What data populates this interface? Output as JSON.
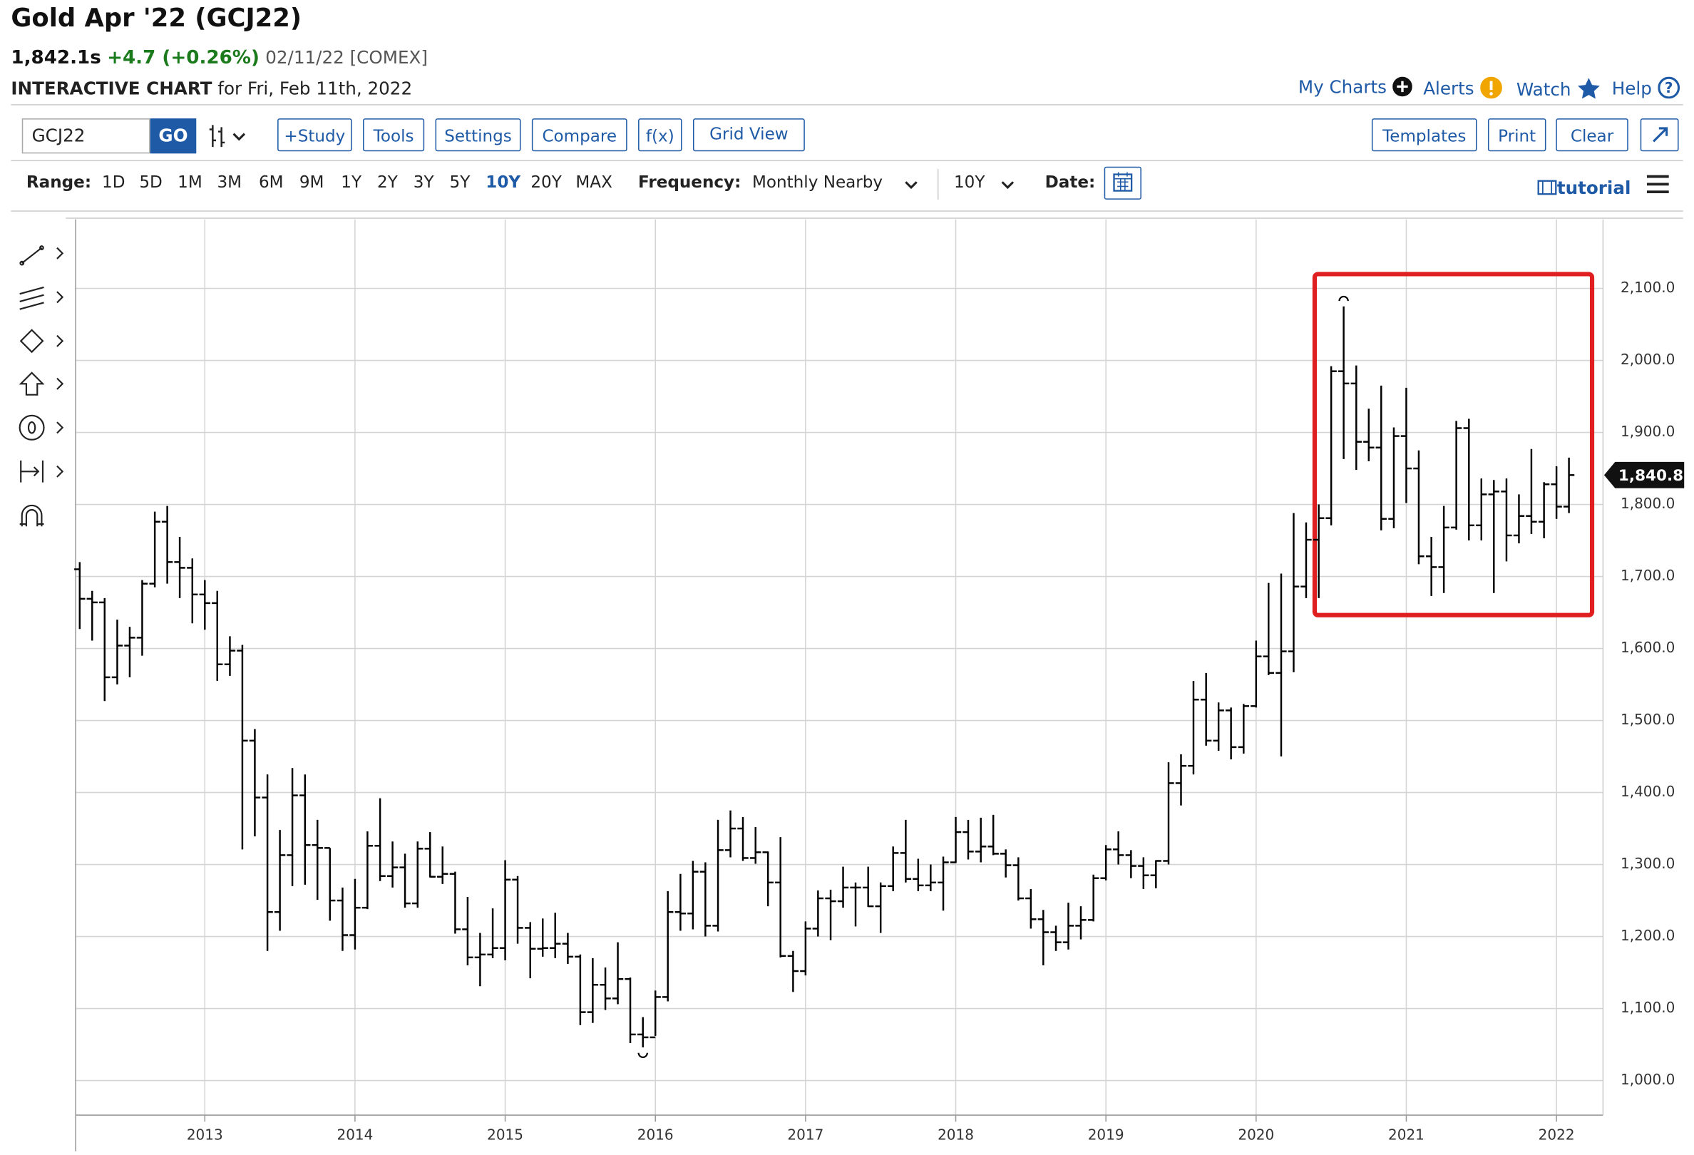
{
  "header": {
    "title": "Gold Apr '22 (GCJ22)",
    "price": "1,842.1s",
    "change": "+4.7 (+0.26%)",
    "date_exchange": "02/11/22 [COMEX]",
    "chart_label": "INTERACTIVE CHART",
    "chart_date": "for Fri, Feb 11th, 2022",
    "links": [
      "My Charts",
      "Alerts",
      "Watch",
      "Help"
    ]
  },
  "toolbar": {
    "symbol": "GCJ22",
    "go": "GO",
    "buttons": [
      "+Study",
      "Tools",
      "Settings",
      "Compare",
      "f(x)",
      "Grid View"
    ],
    "right_buttons": [
      "Templates",
      "Print",
      "Clear"
    ],
    "range_label": "Range:",
    "ranges": [
      "1D",
      "5D",
      "1M",
      "3M",
      "6M",
      "9M",
      "1Y",
      "2Y",
      "3Y",
      "5Y",
      "10Y",
      "20Y",
      "MAX"
    ],
    "frequency_label": "Frequency:",
    "frequency": "Monthly Nearby",
    "period": "10Y",
    "date_label": "Date:",
    "tutorial": "tutorial"
  },
  "chart_data": {
    "type": "ohlc",
    "color": "#000000",
    "grid": true,
    "x": [
      2012.167,
      2012.25,
      2012.333,
      2012.417,
      2012.5,
      2012.583,
      2012.667,
      2012.75,
      2012.833,
      2012.917,
      2013,
      2013.083,
      2013.167,
      2013.25,
      2013.333,
      2013.417,
      2013.5,
      2013.583,
      2013.667,
      2013.75,
      2013.833,
      2013.917,
      2014,
      2014.083,
      2014.167,
      2014.25,
      2014.333,
      2014.417,
      2014.5,
      2014.583,
      2014.667,
      2014.75,
      2014.833,
      2014.917,
      2015,
      2015.083,
      2015.167,
      2015.25,
      2015.333,
      2015.417,
      2015.5,
      2015.583,
      2015.667,
      2015.75,
      2015.833,
      2015.917,
      2016,
      2016.083,
      2016.167,
      2016.25,
      2016.333,
      2016.417,
      2016.5,
      2016.583,
      2016.667,
      2016.75,
      2016.833,
      2016.917,
      2017,
      2017.083,
      2017.167,
      2017.25,
      2017.333,
      2017.417,
      2017.5,
      2017.583,
      2017.667,
      2017.75,
      2017.833,
      2017.917,
      2018,
      2018.083,
      2018.167,
      2018.25,
      2018.333,
      2018.417,
      2018.5,
      2018.583,
      2018.667,
      2018.75,
      2018.833,
      2018.917,
      2019,
      2019.083,
      2019.167,
      2019.25,
      2019.333,
      2019.417,
      2019.5,
      2019.583,
      2019.667,
      2019.75,
      2019.833,
      2019.917,
      2020,
      2020.083,
      2020.167,
      2020.25,
      2020.333,
      2020.417,
      2020.5,
      2020.583,
      2020.667,
      2020.75,
      2020.833,
      2020.917,
      2021,
      2021.083,
      2021.167,
      2021.25,
      2021.333,
      2021.417,
      2021.5,
      2021.583,
      2021.667,
      2021.75,
      2021.833,
      2021.917,
      2022,
      2022.083
    ],
    "open": [
      1710,
      1669,
      1664,
      1560,
      1604,
      1615,
      1690,
      1776,
      1720,
      1712,
      1675,
      1663,
      1578,
      1597,
      1472,
      1393,
      1234,
      1313,
      1396,
      1327,
      1323,
      1250,
      1202,
      1240,
      1326,
      1284,
      1296,
      1246,
      1322,
      1283,
      1287,
      1210,
      1171,
      1175,
      1184,
      1279,
      1212,
      1183,
      1184,
      1190,
      1172,
      1095,
      1133,
      1114,
      1141,
      1064,
      1060,
      1116,
      1234,
      1232,
      1290,
      1215,
      1320,
      1350,
      1309,
      1317,
      1275,
      1173,
      1152,
      1211,
      1253,
      1249,
      1268,
      1268,
      1242,
      1270,
      1316,
      1280,
      1271,
      1275,
      1303,
      1345,
      1318,
      1325,
      1315,
      1299,
      1253,
      1224,
      1206,
      1192,
      1215,
      1223,
      1281,
      1321,
      1313,
      1298,
      1285,
      1305,
      1413,
      1437,
      1529,
      1472,
      1514,
      1463,
      1520,
      1589,
      1566,
      1596,
      1686,
      1751,
      1781,
      1985,
      1968,
      1887,
      1879,
      1780,
      1895,
      1850,
      1728,
      1713,
      1768,
      1906,
      1771,
      1814,
      1818,
      1757,
      1784,
      1776,
      1828,
      1797
    ],
    "high": [
      1720,
      1680,
      1670,
      1640,
      1630,
      1695,
      1790,
      1798,
      1755,
      1725,
      1695,
      1680,
      1617,
      1605,
      1488,
      1425,
      1348,
      1434,
      1425,
      1362,
      1323,
      1268,
      1280,
      1346,
      1392,
      1332,
      1315,
      1332,
      1345,
      1325,
      1290,
      1255,
      1205,
      1239,
      1306,
      1284,
      1220,
      1225,
      1233,
      1205,
      1175,
      1170,
      1157,
      1192,
      1143,
      1088,
      1125,
      1263,
      1287,
      1305,
      1303,
      1362,
      1375,
      1366,
      1352,
      1318,
      1338,
      1180,
      1221,
      1264,
      1265,
      1297,
      1275,
      1297,
      1275,
      1325,
      1362,
      1308,
      1300,
      1311,
      1366,
      1362,
      1365,
      1369,
      1321,
      1310,
      1266,
      1237,
      1215,
      1247,
      1242,
      1286,
      1327,
      1346,
      1320,
      1310,
      1306,
      1442,
      1453,
      1555,
      1566,
      1525,
      1518,
      1523,
      1611,
      1691,
      1704,
      1788,
      1775,
      1800,
      1992,
      2075,
      1993,
      1933,
      1965,
      1907,
      1962,
      1875,
      1755,
      1798,
      1916,
      1919,
      1836,
      1834,
      1836,
      1814,
      1877,
      1831,
      1853,
      1865
    ],
    "low": [
      1627,
      1611,
      1527,
      1550,
      1560,
      1590,
      1685,
      1690,
      1670,
      1635,
      1626,
      1555,
      1562,
      1321,
      1339,
      1180,
      1208,
      1270,
      1272,
      1251,
      1222,
      1180,
      1182,
      1238,
      1277,
      1268,
      1240,
      1240,
      1282,
      1273,
      1204,
      1160,
      1131,
      1170,
      1167,
      1190,
      1142,
      1172,
      1170,
      1162,
      1077,
      1080,
      1098,
      1106,
      1052,
      1046,
      1062,
      1110,
      1208,
      1210,
      1200,
      1207,
      1310,
      1305,
      1301,
      1242,
      1171,
      1123,
      1146,
      1200,
      1195,
      1240,
      1214,
      1241,
      1205,
      1263,
      1275,
      1263,
      1263,
      1236,
      1302,
      1307,
      1303,
      1313,
      1282,
      1250,
      1211,
      1160,
      1180,
      1182,
      1196,
      1221,
      1278,
      1300,
      1281,
      1266,
      1267,
      1300,
      1382,
      1425,
      1465,
      1458,
      1446,
      1454,
      1518,
      1563,
      1450,
      1567,
      1670,
      1670,
      1771,
      1863,
      1848,
      1860,
      1764,
      1767,
      1802,
      1717,
      1673,
      1677,
      1765,
      1750,
      1750,
      1677,
      1721,
      1746,
      1759,
      1753,
      1780,
      1788
    ],
    "close": [
      1669,
      1664,
      1560,
      1604,
      1615,
      1690,
      1776,
      1720,
      1712,
      1675,
      1663,
      1578,
      1597,
      1472,
      1393,
      1234,
      1313,
      1396,
      1327,
      1323,
      1250,
      1202,
      1240,
      1326,
      1284,
      1296,
      1246,
      1322,
      1283,
      1287,
      1210,
      1171,
      1175,
      1184,
      1279,
      1212,
      1183,
      1184,
      1190,
      1172,
      1095,
      1133,
      1114,
      1141,
      1064,
      1060,
      1116,
      1234,
      1232,
      1290,
      1215,
      1320,
      1350,
      1309,
      1317,
      1275,
      1173,
      1152,
      1211,
      1253,
      1249,
      1268,
      1268,
      1242,
      1270,
      1316,
      1280,
      1271,
      1275,
      1303,
      1345,
      1318,
      1325,
      1315,
      1299,
      1253,
      1224,
      1206,
      1192,
      1215,
      1223,
      1281,
      1321,
      1313,
      1298,
      1285,
      1305,
      1413,
      1437,
      1529,
      1472,
      1514,
      1463,
      1520,
      1589,
      1566,
      1596,
      1686,
      1751,
      1781,
      1985,
      1968,
      1887,
      1879,
      1780,
      1895,
      1850,
      1728,
      1713,
      1768,
      1906,
      1771,
      1814,
      1818,
      1757,
      1784,
      1776,
      1828,
      1797,
      1840.8
    ],
    "last_value": {
      "value": 1840.8,
      "label": "1,840.8"
    },
    "xlim": [
      2012.14,
      2022.31
    ],
    "xticks": [
      2013,
      2014,
      2015,
      2016,
      2017,
      2018,
      2019,
      2020,
      2021,
      2022
    ],
    "ylim": [
      952,
      2196
    ],
    "yticks": [
      {
        "value": 1000,
        "label": "1,000.0"
      },
      {
        "value": 1100,
        "label": "1,100.0"
      },
      {
        "value": 1200,
        "label": "1,200.0"
      },
      {
        "value": 1300,
        "label": "1,300.0"
      },
      {
        "value": 1400,
        "label": "1,400.0"
      },
      {
        "value": 1500,
        "label": "1,500.0"
      },
      {
        "value": 1600,
        "label": "1,600.0"
      },
      {
        "value": 1700,
        "label": "1,700.0"
      },
      {
        "value": 1800,
        "label": "1,800.0"
      },
      {
        "value": 1900,
        "label": "1,900.0"
      },
      {
        "value": 2000,
        "label": "2,000.0"
      },
      {
        "value": 2100,
        "label": "2,100.0"
      }
    ]
  }
}
